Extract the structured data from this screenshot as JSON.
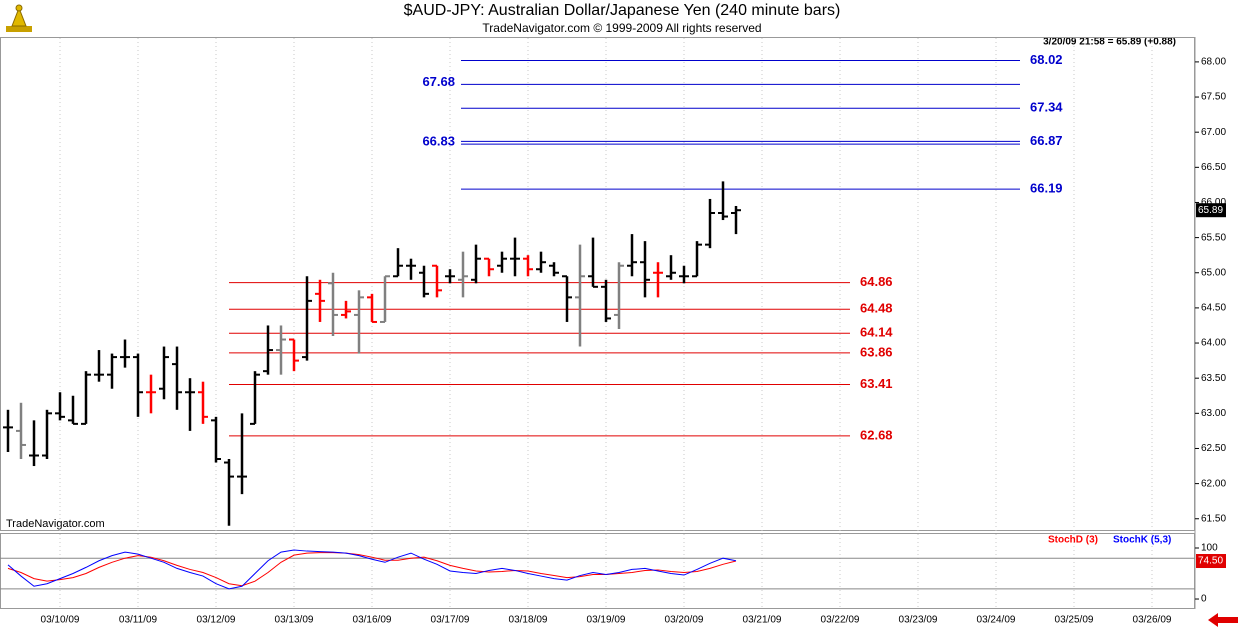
{
  "chart_data": {
    "type": "ohlc",
    "title": "$AUD-JPY:  Australian Dollar/Japanese Yen  (240 minute bars)",
    "subtitle": "TradeNavigator.com © 1999-2009 All rights reserved",
    "status": "3/20/09 21:58 = 65.89 (+0.88)",
    "watermark": "TradeNavigator.com",
    "categories": [
      "03/10/09",
      "03/11/09",
      "03/12/09",
      "03/13/09",
      "03/16/09",
      "03/17/09",
      "03/18/09",
      "03/19/09",
      "03/20/09",
      "03/21/09",
      "03/22/09",
      "03/23/09",
      "03/24/09",
      "03/25/09",
      "03/26/09"
    ],
    "ylim": [
      61.34,
      68.34
    ],
    "yticks": [
      {
        "value": 61.5,
        "label": "61.50"
      },
      {
        "value": 62,
        "label": "62.00"
      },
      {
        "value": 62.5,
        "label": "62.50"
      },
      {
        "value": 63,
        "label": "63.00"
      },
      {
        "value": 63.5,
        "label": "63.50"
      },
      {
        "value": 64,
        "label": "64.00"
      },
      {
        "value": 64.5,
        "label": "64.50"
      },
      {
        "value": 65,
        "label": "65.00"
      },
      {
        "value": 65.5,
        "label": "65.50"
      },
      {
        "value": 66,
        "label": "66.00"
      },
      {
        "value": 66.5,
        "label": "66.50"
      },
      {
        "value": 67,
        "label": "67.00"
      },
      {
        "value": 67.5,
        "label": "67.50"
      },
      {
        "value": 68,
        "label": "68.00"
      }
    ],
    "last_price": 65.89,
    "ohlc": [
      [
        62.8,
        63.05,
        62.45,
        62.8
      ],
      [
        62.75,
        63.15,
        62.35,
        62.55
      ],
      [
        62.4,
        62.9,
        62.25,
        62.4
      ],
      [
        62.4,
        63.05,
        62.35,
        63.0
      ],
      [
        63.0,
        63.3,
        62.9,
        62.95
      ],
      [
        62.9,
        63.25,
        62.85,
        62.85
      ],
      [
        62.85,
        63.6,
        62.85,
        63.55
      ],
      [
        63.55,
        63.9,
        63.45,
        63.55
      ],
      [
        63.55,
        63.85,
        63.35,
        63.8
      ],
      [
        63.8,
        64.05,
        63.65,
        63.8
      ],
      [
        63.8,
        63.85,
        62.95,
        63.3
      ],
      [
        63.3,
        63.55,
        63.0,
        63.3
      ],
      [
        63.35,
        63.95,
        63.2,
        63.8
      ],
      [
        63.7,
        63.95,
        63.05,
        63.3
      ],
      [
        63.3,
        63.5,
        62.75,
        63.3
      ],
      [
        63.3,
        63.45,
        62.85,
        62.95
      ],
      [
        62.9,
        62.95,
        62.3,
        62.35
      ],
      [
        62.3,
        62.35,
        61.4,
        62.1
      ],
      [
        62.1,
        63.0,
        61.85,
        62.1
      ],
      [
        62.85,
        63.6,
        62.85,
        63.55
      ],
      [
        63.6,
        64.25,
        63.55,
        63.9
      ],
      [
        63.9,
        64.25,
        63.55,
        64.05
      ],
      [
        64.05,
        64.05,
        63.6,
        63.75
      ],
      [
        63.8,
        64.95,
        63.75,
        64.6
      ],
      [
        64.7,
        64.9,
        64.3,
        64.6
      ],
      [
        64.85,
        65.0,
        64.1,
        64.4
      ],
      [
        64.4,
        64.6,
        64.35,
        64.45
      ],
      [
        64.4,
        64.75,
        63.85,
        64.65
      ],
      [
        64.65,
        64.7,
        64.3,
        64.3
      ],
      [
        64.3,
        64.95,
        64.3,
        64.95
      ],
      [
        64.95,
        65.35,
        64.95,
        65.1
      ],
      [
        65.1,
        65.2,
        64.9,
        65.1
      ],
      [
        65.0,
        65.1,
        64.65,
        64.7
      ],
      [
        65.1,
        65.1,
        64.65,
        64.75
      ],
      [
        64.95,
        65.05,
        64.85,
        64.95
      ],
      [
        64.9,
        65.3,
        64.65,
        64.95
      ],
      [
        64.9,
        65.4,
        64.85,
        65.2
      ],
      [
        65.2,
        65.2,
        64.95,
        65.05
      ],
      [
        65.1,
        65.3,
        65.0,
        65.2
      ],
      [
        65.2,
        65.5,
        64.95,
        65.2
      ],
      [
        65.2,
        65.25,
        64.95,
        65.05
      ],
      [
        65.05,
        65.3,
        65.0,
        65.15
      ],
      [
        65.1,
        65.15,
        64.95,
        65.0
      ],
      [
        64.95,
        64.95,
        64.3,
        64.65
      ],
      [
        64.65,
        65.4,
        63.95,
        64.95
      ],
      [
        64.95,
        65.5,
        64.8,
        64.8
      ],
      [
        64.8,
        64.9,
        64.3,
        64.35
      ],
      [
        64.4,
        65.15,
        64.2,
        65.1
      ],
      [
        65.1,
        65.55,
        64.95,
        65.15
      ],
      [
        65.15,
        65.45,
        64.65,
        64.9
      ],
      [
        65.0,
        65.15,
        64.65,
        65.0
      ],
      [
        64.95,
        65.25,
        64.9,
        65.0
      ],
      [
        64.95,
        65.1,
        64.85,
        64.95
      ],
      [
        64.95,
        65.45,
        64.95,
        65.4
      ],
      [
        65.4,
        66.05,
        65.35,
        65.85
      ],
      [
        65.85,
        66.3,
        65.75,
        65.8
      ],
      [
        65.85,
        65.95,
        65.55,
        65.89
      ]
    ],
    "bar_colors": [
      "#000000",
      "#808080",
      "#000000",
      "#000000",
      "#000000",
      "#000000",
      "#000000",
      "#000000",
      "#000000",
      "#000000",
      "#000000",
      "#ff0000",
      "#000000",
      "#000000",
      "#000000",
      "#ff0000",
      "#000000",
      "#000000",
      "#000000",
      "#000000",
      "#000000",
      "#808080",
      "#ff0000",
      "#000000",
      "#ff0000",
      "#808080",
      "#ff0000",
      "#808080",
      "#ff0000",
      "#808080",
      "#000000",
      "#000000",
      "#000000",
      "#ff0000",
      "#000000",
      "#808080",
      "#000000",
      "#ff0000",
      "#000000",
      "#000000",
      "#ff0000",
      "#000000",
      "#000000",
      "#000000",
      "#808080",
      "#000000",
      "#000000",
      "#808080",
      "#000000",
      "#000000",
      "#ff0000",
      "#000000",
      "#000000",
      "#000000",
      "#000000",
      "#000000",
      "#000000"
    ],
    "levels": [
      {
        "value": 68.02,
        "color": "#0000cc",
        "side": "right"
      },
      {
        "value": 67.68,
        "color": "#0000cc",
        "side": "left"
      },
      {
        "value": 67.34,
        "color": "#0000cc",
        "side": "right"
      },
      {
        "value": 66.87,
        "color": "#0000cc",
        "side": "right"
      },
      {
        "value": 66.83,
        "color": "#0000cc",
        "side": "left"
      },
      {
        "value": 66.19,
        "color": "#0000cc",
        "side": "right"
      },
      {
        "value": 64.86,
        "color": "#e00000",
        "side": "right"
      },
      {
        "value": 64.48,
        "color": "#e00000",
        "side": "right"
      },
      {
        "value": 64.14,
        "color": "#e00000",
        "side": "right"
      },
      {
        "value": 63.86,
        "color": "#e00000",
        "side": "right"
      },
      {
        "value": 63.41,
        "color": "#e00000",
        "side": "right"
      },
      {
        "value": 62.68,
        "color": "#e00000",
        "side": "right"
      }
    ],
    "stochastic": {
      "ylim": [
        -17.6,
        129.4
      ],
      "yticks": [
        100,
        0
      ],
      "ref_lines": [
        80,
        20
      ],
      "last_value": {
        "value": 74.5,
        "label": "74.50"
      },
      "series": [
        {
          "name": "StochD (3)",
          "color": "#ff0000",
          "values": [
            60,
            52,
            40,
            35,
            38,
            42,
            50,
            62,
            72,
            80,
            85,
            82,
            75,
            66,
            58,
            52,
            42,
            30,
            26,
            35,
            52,
            72,
            86,
            90,
            91,
            91,
            90,
            87,
            82,
            76,
            76,
            80,
            82,
            75,
            66,
            60,
            55,
            53,
            54,
            56,
            55,
            50,
            46,
            42,
            44,
            48,
            48,
            50,
            52,
            56,
            57,
            54,
            52,
            54,
            60,
            68,
            74.5
          ]
        },
        {
          "name": "StochK (5,3)",
          "color": "#0000ff",
          "values": [
            67,
            45,
            25,
            30,
            40,
            50,
            62,
            75,
            85,
            92,
            88,
            80,
            72,
            60,
            52,
            45,
            30,
            20,
            25,
            50,
            75,
            92,
            96,
            94,
            93,
            92,
            90,
            85,
            78,
            72,
            82,
            90,
            78,
            68,
            55,
            52,
            50,
            56,
            60,
            56,
            50,
            45,
            40,
            37,
            46,
            52,
            48,
            52,
            58,
            60,
            55,
            50,
            47,
            58,
            70,
            80,
            75
          ]
        }
      ]
    }
  }
}
